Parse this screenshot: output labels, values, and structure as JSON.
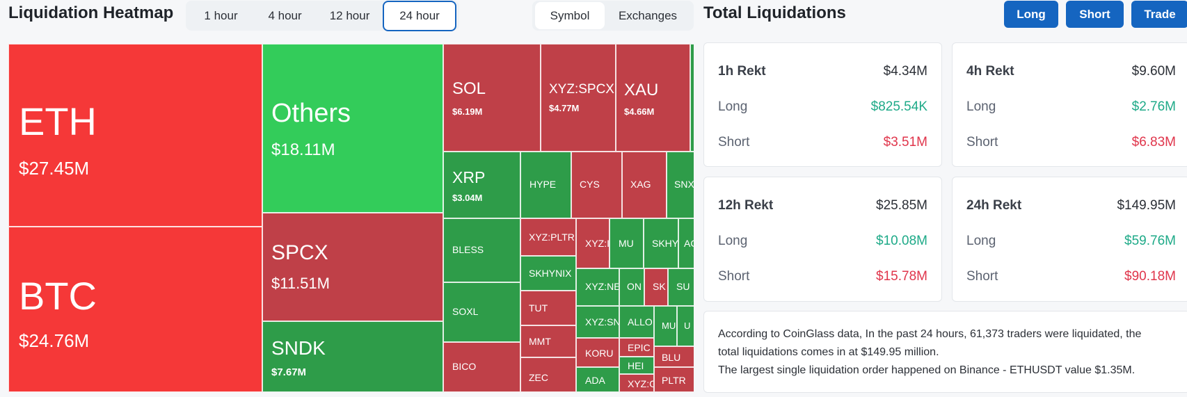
{
  "header": {
    "title": "Liquidation Heatmap",
    "time_tabs": [
      "1 hour",
      "4 hour",
      "12 hour",
      "24 hour"
    ],
    "active_time_tab": "24 hour",
    "group_tabs": [
      "Symbol",
      "Exchanges"
    ],
    "active_group_tab": "Symbol"
  },
  "right_header": {
    "title": "Total Liquidations",
    "buttons": [
      "Long",
      "Short",
      "Trade"
    ]
  },
  "heatmap": {
    "tiles": [
      {
        "symbol": "ETH",
        "value": "$27.45M",
        "color": "#f53838"
      },
      {
        "symbol": "BTC",
        "value": "$24.76M",
        "color": "#f53838"
      },
      {
        "symbol": "Others",
        "value": "$18.11M",
        "color": "#33cc5a"
      },
      {
        "symbol": "SPCX",
        "value": "$11.51M",
        "color": "#bf4048"
      },
      {
        "symbol": "SNDK",
        "value": "$7.67M",
        "color": "#2e9c49"
      },
      {
        "symbol": "SOL",
        "value": "$6.19M",
        "color": "#bf4048"
      },
      {
        "symbol": "XYZ:SPCX",
        "value": "$4.77M",
        "color": "#bf4048"
      },
      {
        "symbol": "XAU",
        "value": "$4.66M",
        "color": "#bf4048"
      },
      {
        "symbol": "XRP",
        "value": "$3.04M",
        "color": "#2e9c49"
      },
      {
        "symbol": "HYPE",
        "value": "",
        "color": "#2e9c49"
      },
      {
        "symbol": "CYS",
        "value": "",
        "color": "#bf4048"
      },
      {
        "symbol": "XAG",
        "value": "",
        "color": "#bf4048"
      },
      {
        "symbol": "SNX",
        "value": "",
        "color": "#2e9c49"
      },
      {
        "symbol": "BLESS",
        "value": "",
        "color": "#2e9c49"
      },
      {
        "symbol": "XYZ:PLTR",
        "value": "",
        "color": "#bf4048"
      },
      {
        "symbol": "XYZ:I",
        "value": "",
        "color": "#bf4048"
      },
      {
        "symbol": "MU",
        "value": "",
        "color": "#2e9c49"
      },
      {
        "symbol": "SKHY",
        "value": "",
        "color": "#2e9c49"
      },
      {
        "symbol": "AC",
        "value": "",
        "color": "#2e9c49"
      },
      {
        "symbol": "SKHYNIX",
        "value": "",
        "color": "#2e9c49"
      },
      {
        "symbol": "XYZ:NE",
        "value": "",
        "color": "#2e9c49"
      },
      {
        "symbol": "ON",
        "value": "",
        "color": "#2e9c49"
      },
      {
        "symbol": "SK",
        "value": "",
        "color": "#bf4048"
      },
      {
        "symbol": "SU",
        "value": "",
        "color": "#2e9c49"
      },
      {
        "symbol": "SOXL",
        "value": "",
        "color": "#2e9c49"
      },
      {
        "symbol": "TUT",
        "value": "",
        "color": "#bf4048"
      },
      {
        "symbol": "XYZ:SN",
        "value": "",
        "color": "#2e9c49"
      },
      {
        "symbol": "ALLO",
        "value": "",
        "color": "#2e9c49"
      },
      {
        "symbol": "MU",
        "value": "",
        "color": "#2e9c49"
      },
      {
        "symbol": "U",
        "value": "",
        "color": "#2e9c49"
      },
      {
        "symbol": "MMT",
        "value": "",
        "color": "#bf4048"
      },
      {
        "symbol": "KORU",
        "value": "",
        "color": "#bf4048"
      },
      {
        "symbol": "EPIC",
        "value": "",
        "color": "#bf4048"
      },
      {
        "symbol": "HEI",
        "value": "",
        "color": "#2e9c49"
      },
      {
        "symbol": "BLU",
        "value": "",
        "color": "#bf4048"
      },
      {
        "symbol": "BICO",
        "value": "",
        "color": "#bf4048"
      },
      {
        "symbol": "ZEC",
        "value": "",
        "color": "#bf4048"
      },
      {
        "symbol": "ADA",
        "value": "",
        "color": "#2e9c49"
      },
      {
        "symbol": "XYZ:G",
        "value": "",
        "color": "#bf4048"
      },
      {
        "symbol": "PLTR",
        "value": "",
        "color": "#bf4048"
      }
    ]
  },
  "cards": [
    {
      "title": "1h Rekt",
      "total": "$4.34M",
      "long_label": "Long",
      "long": "$825.54K",
      "short_label": "Short",
      "short": "$3.51M"
    },
    {
      "title": "4h Rekt",
      "total": "$9.60M",
      "long_label": "Long",
      "long": "$2.76M",
      "short_label": "Short",
      "short": "$6.83M"
    },
    {
      "title": "12h Rekt",
      "total": "$25.85M",
      "long_label": "Long",
      "long": "$10.08M",
      "short_label": "Short",
      "short": "$15.78M"
    },
    {
      "title": "24h Rekt",
      "total": "$149.95M",
      "long_label": "Long",
      "long": "$59.76M",
      "short_label": "Short",
      "short": "$90.18M"
    }
  ],
  "summary": {
    "line1": "According to CoinGlass data, In the past 24 hours, 61,373 traders were liquidated, the",
    "line2": "total liquidations comes in at $149.95 million.",
    "line3": "The largest single liquidation order happened on Binance - ETHUSDT value $1.35M."
  },
  "colors": {
    "accent": "#1565c0",
    "long": "#1eaa88",
    "short": "#e0354b"
  }
}
